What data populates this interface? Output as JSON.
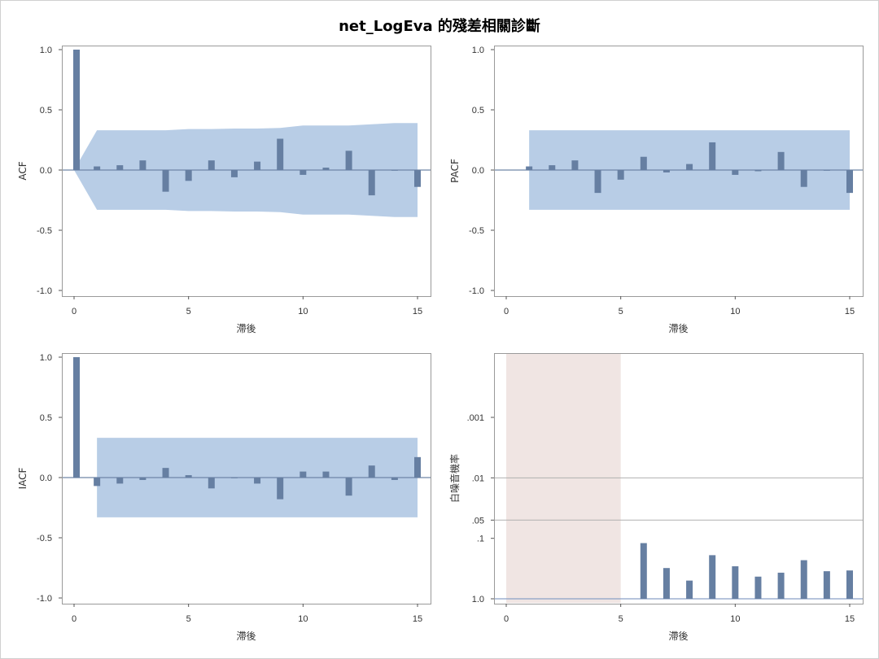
{
  "page": {
    "title": "net_LogEva 的殘差相關診斷"
  },
  "colors": {
    "bar": "#667fa2",
    "band": "#b8cde6",
    "zero_line": "#6f86a8",
    "frame": "#9a9a9a",
    "grid_line": "#b0b0b0",
    "wn_shade": "#f0e5e3",
    "wn_baseline": "#8aa0c6"
  },
  "chart_data": [
    {
      "id": "acf",
      "type": "bar",
      "ylabel": "ACF",
      "xlabel": "滯後",
      "xlim": [
        0,
        15
      ],
      "ylim": [
        -1,
        1
      ],
      "xticks": [
        "0",
        "5",
        "10",
        "15"
      ],
      "yticks": [
        "1.0",
        "0.5",
        "0.0",
        "-0.5",
        "-1.0"
      ],
      "x": [
        0,
        1,
        2,
        3,
        4,
        5,
        6,
        7,
        8,
        9,
        10,
        11,
        12,
        13,
        14,
        15
      ],
      "values": [
        1.0,
        0.03,
        0.04,
        0.08,
        -0.18,
        -0.09,
        0.08,
        -0.06,
        0.07,
        0.26,
        -0.04,
        0.02,
        0.16,
        -0.21,
        0.0,
        -0.14
      ],
      "confidence_band": {
        "x": [
          0,
          1,
          2,
          3,
          4,
          5,
          6,
          7,
          8,
          9,
          10,
          11,
          12,
          13,
          14,
          15
        ],
        "upper": [
          0,
          0.33,
          0.33,
          0.33,
          0.33,
          0.34,
          0.34,
          0.345,
          0.345,
          0.35,
          0.37,
          0.37,
          0.37,
          0.38,
          0.39,
          0.39
        ]
      }
    },
    {
      "id": "pacf",
      "type": "bar",
      "ylabel": "PACF",
      "xlabel": "滯後",
      "xlim": [
        0,
        15
      ],
      "ylim": [
        -1,
        1
      ],
      "xticks": [
        "0",
        "5",
        "10",
        "15"
      ],
      "yticks": [
        "1.0",
        "0.5",
        "0.0",
        "-0.5",
        "-1.0"
      ],
      "x": [
        1,
        2,
        3,
        4,
        5,
        6,
        7,
        8,
        9,
        10,
        11,
        12,
        13,
        14,
        15
      ],
      "values": [
        0.03,
        0.04,
        0.08,
        -0.19,
        -0.08,
        0.11,
        -0.02,
        0.05,
        0.23,
        -0.04,
        -0.01,
        0.15,
        -0.14,
        0.0,
        -0.19
      ],
      "confidence_band": {
        "x": [
          1,
          15
        ],
        "upper": [
          0.33,
          0.33
        ]
      }
    },
    {
      "id": "iacf",
      "type": "bar",
      "ylabel": "IACF",
      "xlabel": "滯後",
      "xlim": [
        0,
        15
      ],
      "ylim": [
        -1,
        1
      ],
      "xticks": [
        "0",
        "5",
        "10",
        "15"
      ],
      "yticks": [
        "1.0",
        "0.5",
        "0.0",
        "-0.5",
        "-1.0"
      ],
      "x": [
        0,
        1,
        2,
        3,
        4,
        5,
        6,
        7,
        8,
        9,
        10,
        11,
        12,
        13,
        14,
        15
      ],
      "values": [
        1.0,
        -0.07,
        -0.05,
        -0.02,
        0.08,
        0.02,
        -0.09,
        -0.005,
        -0.05,
        -0.18,
        0.05,
        0.05,
        -0.15,
        0.1,
        -0.02,
        0.17
      ],
      "confidence_band": {
        "x": [
          1,
          15
        ],
        "upper": [
          0.33,
          0.33
        ]
      }
    },
    {
      "id": "whitenoise",
      "type": "bar",
      "ylabel": "白噪音機率",
      "xlabel": "滯後",
      "scale": "log-probability",
      "xlim": [
        0,
        15
      ],
      "ylim": [
        1.0,
        0.0001
      ],
      "xticks": [
        "0",
        "5",
        "10",
        "15"
      ],
      "yticks": [
        ".001",
        ".01",
        ".05",
        ".1",
        "1.0"
      ],
      "reference_lines": [
        0.01,
        0.05
      ],
      "shaded_x": [
        0,
        5
      ],
      "x": [
        6,
        7,
        8,
        9,
        10,
        11,
        12,
        13,
        14,
        15
      ],
      "values": [
        0.12,
        0.31,
        0.5,
        0.19,
        0.29,
        0.43,
        0.37,
        0.23,
        0.35,
        0.34
      ]
    }
  ]
}
